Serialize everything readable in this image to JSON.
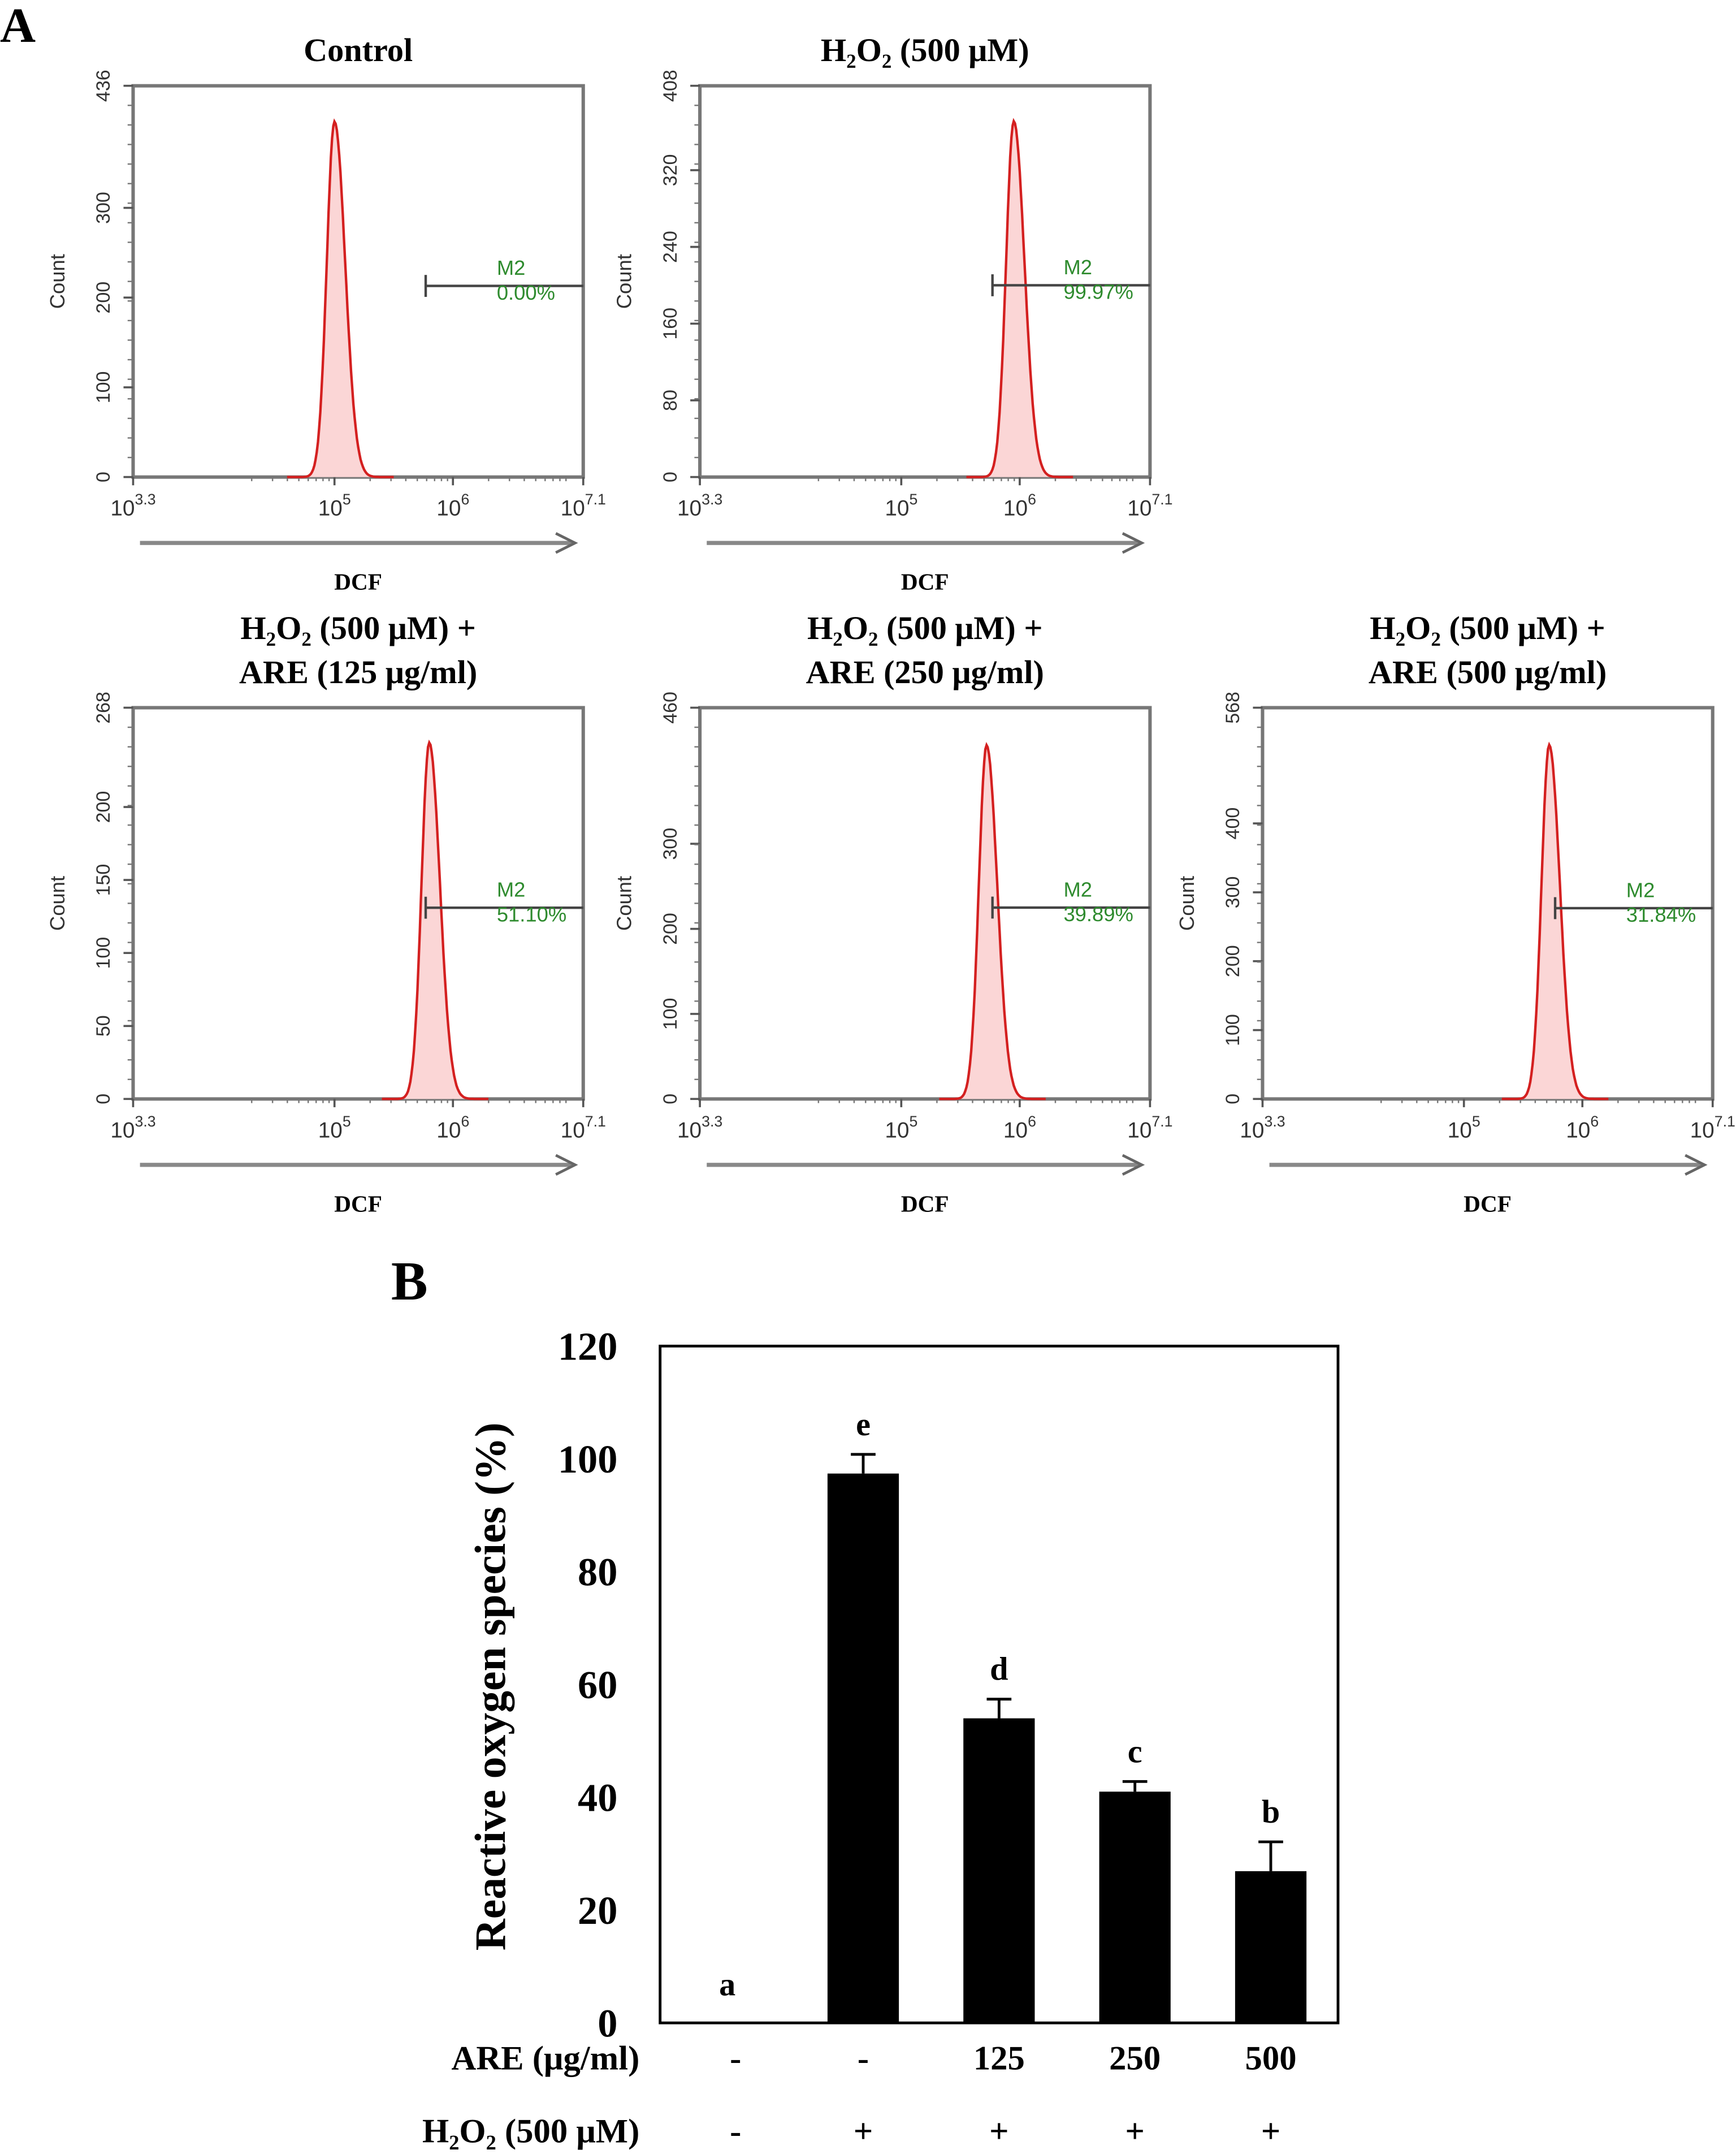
{
  "chart_data": [
    {
      "type": "histogram",
      "panel_label": "A",
      "title": [
        "Control"
      ],
      "xlabel": "DCF",
      "ylabel": "Count",
      "x_scale": "log",
      "x_tick_exponents": [
        "3.3",
        "5",
        "6",
        "7.1"
      ],
      "x_tick_base": "10",
      "ylim": [
        0,
        436
      ],
      "y_ticks": [
        "0",
        "100",
        "200",
        "300",
        "436"
      ],
      "peak_log_x": 5.0,
      "peak_count": 396,
      "marker": {
        "name": "M2",
        "value": "0.00%",
        "gate_start_log_x": 5.77,
        "gate_count": 213
      },
      "colors": {
        "histogram": "#d42020",
        "fill": "#fbd6d6",
        "marker_text": "#2e8b2e"
      }
    },
    {
      "type": "histogram",
      "title": [
        "H₂O₂ (500 μM)"
      ],
      "xlabel": "DCF",
      "ylabel": "Count",
      "x_scale": "log",
      "x_tick_exponents": [
        "3.3",
        "5",
        "6",
        "7.1"
      ],
      "x_tick_base": "10",
      "ylim": [
        0,
        408
      ],
      "y_ticks": [
        "0",
        "80",
        "160",
        "240",
        "320",
        "408"
      ],
      "peak_log_x": 5.95,
      "peak_count": 371,
      "marker": {
        "name": "M2",
        "value": "99.97%",
        "gate_start_log_x": 5.77,
        "gate_count": 200
      }
    },
    {
      "type": "histogram",
      "title": [
        "H₂O₂ (500 μM) +",
        "ARE (125 μg/ml)"
      ],
      "xlabel": "DCF",
      "ylabel": "Count",
      "x_scale": "log",
      "x_tick_exponents": [
        "3.3",
        "5",
        "6",
        "7.1"
      ],
      "x_tick_base": "10",
      "ylim": [
        0,
        268
      ],
      "y_ticks": [
        "0",
        "50",
        "100",
        "150",
        "200",
        "268"
      ],
      "peak_log_x": 5.8,
      "peak_count": 244,
      "marker": {
        "name": "M2",
        "value": "51.10%",
        "gate_start_log_x": 5.77,
        "gate_count": 131
      }
    },
    {
      "type": "histogram",
      "title": [
        "H₂O₂ (500 μM) +",
        "ARE (250 μg/ml)"
      ],
      "xlabel": "DCF",
      "ylabel": "Count",
      "x_scale": "log",
      "x_tick_exponents": [
        "3.3",
        "5",
        "6",
        "7.1"
      ],
      "x_tick_base": "10",
      "ylim": [
        0,
        460
      ],
      "y_ticks": [
        "0",
        "100",
        "200",
        "300",
        "460"
      ],
      "peak_log_x": 5.72,
      "peak_count": 416,
      "marker": {
        "name": "M2",
        "value": "39.89%",
        "gate_start_log_x": 5.77,
        "gate_count": 225
      }
    },
    {
      "type": "histogram",
      "title": [
        "H₂O₂ (500 μM) +",
        "ARE (500 μg/ml)"
      ],
      "xlabel": "DCF",
      "ylabel": "Count",
      "x_scale": "log",
      "x_tick_exponents": [
        "3.3",
        "5",
        "6",
        "7.1"
      ],
      "x_tick_base": "10",
      "ylim": [
        0,
        568
      ],
      "y_ticks": [
        "0",
        "100",
        "200",
        "300",
        "400",
        "568"
      ],
      "peak_log_x": 5.72,
      "peak_count": 514,
      "marker": {
        "name": "M2",
        "value": "31.84%",
        "gate_start_log_x": 5.77,
        "gate_count": 277
      }
    },
    {
      "type": "bar",
      "panel_label": "B",
      "ylabel": "Reactive oxygen species (%)",
      "ylim": [
        0,
        120
      ],
      "y_ticks": [
        "0",
        "20",
        "40",
        "60",
        "80",
        "100",
        "120"
      ],
      "values": [
        0,
        97.4,
        54.0,
        41.0,
        26.9
      ],
      "errors": [
        0,
        3.4,
        3.4,
        1.8,
        5.2
      ],
      "significance_letters": [
        "a",
        "e",
        "d",
        "c",
        "b"
      ],
      "rows": [
        {
          "label": "ARE (μg/ml)",
          "values": [
            "-",
            "-",
            "125",
            "250",
            "500"
          ]
        },
        {
          "label": "H₂O₂ (500 μM)",
          "values": [
            "-",
            "+",
            "+",
            "+",
            "+"
          ]
        }
      ],
      "colors": {
        "bar": "#000000"
      }
    }
  ]
}
